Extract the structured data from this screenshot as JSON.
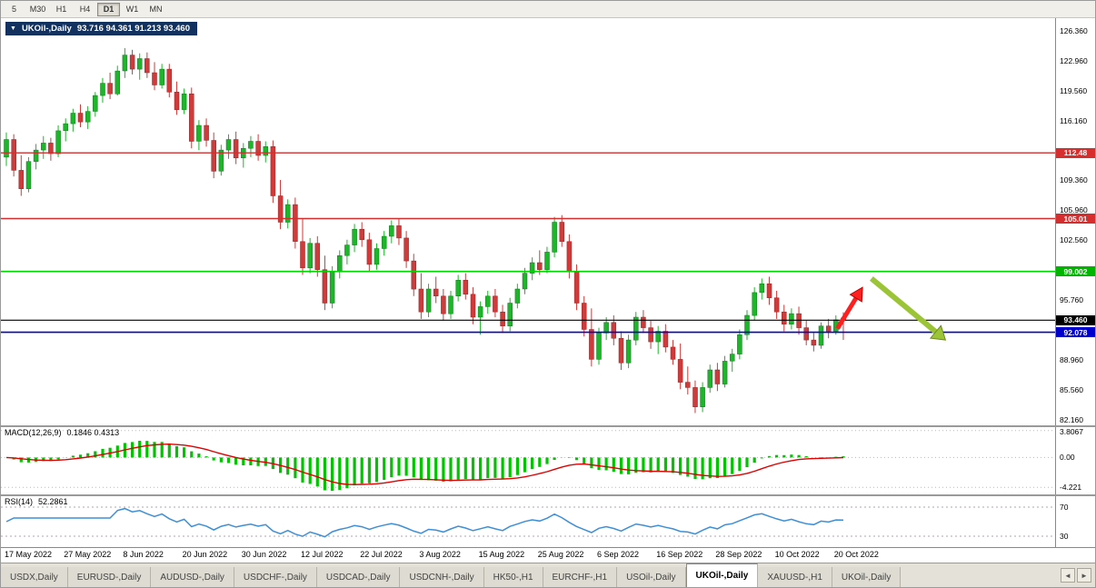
{
  "toolbar": {
    "periods": [
      {
        "label": "5",
        "active": false
      },
      {
        "label": "M30",
        "active": false
      },
      {
        "label": "H1",
        "active": false
      },
      {
        "label": "H4",
        "active": false
      },
      {
        "label": "D1",
        "active": true
      },
      {
        "label": "W1",
        "active": false
      },
      {
        "label": "MN",
        "active": false
      }
    ]
  },
  "chart": {
    "dropdown_icon": "▼",
    "symbol_label": "UKOil-,Daily",
    "ohlc_text": "93.716 94.361 91.213 93.460"
  },
  "chart_data": {
    "type": "candlestick",
    "symbol": "UKOil-,Daily",
    "last_ohlc": {
      "open": 93.716,
      "high": 94.361,
      "low": 91.213,
      "close": 93.46
    },
    "price_range": [
      81.5,
      127.8
    ],
    "price_axis_ticks": [
      "126.360",
      "122.960",
      "119.560",
      "116.160",
      "112.760",
      "109.360",
      "105.960",
      "102.560",
      "99.160",
      "95.760",
      "92.360",
      "88.960",
      "85.560",
      "82.160"
    ],
    "x_labels": [
      "17 May 2022",
      "27 May 2022",
      "8 Jun 2022",
      "20 Jun 2022",
      "30 Jun 2022",
      "12 Jul 2022",
      "22 Jul 2022",
      "3 Aug 2022",
      "15 Aug 2022",
      "25 Aug 2022",
      "6 Sep 2022",
      "16 Sep 2022",
      "28 Sep 2022",
      "10 Oct 2022",
      "20 Oct 2022"
    ],
    "x_label_step": 8,
    "hlines": [
      {
        "price": 112.48,
        "color": "#d62e2e",
        "width": 1.4,
        "badge": "112.48",
        "badge_bg": "#d62e2e"
      },
      {
        "price": 105.01,
        "color": "#d62e2e",
        "width": 1.4,
        "badge": "105.01",
        "badge_bg": "#d62e2e"
      },
      {
        "price": 99.002,
        "color": "#00d300",
        "width": 1.6,
        "badge": "99.002",
        "badge_bg": "#00b400"
      },
      {
        "price": 93.46,
        "color": "#000000",
        "width": 1.2,
        "badge": "93.460",
        "badge_bg": "#000000"
      },
      {
        "price": 92.078,
        "color": "#0000dd",
        "width": 1.6,
        "badge": "92.078",
        "badge_bg": "#0000cc"
      }
    ],
    "candles": [
      [
        112.0,
        114.8,
        111.0,
        114.0
      ],
      [
        114.0,
        114.6,
        109.8,
        110.5
      ],
      [
        110.5,
        112.2,
        107.6,
        108.4
      ],
      [
        108.4,
        112.0,
        108.0,
        111.5
      ],
      [
        111.5,
        113.5,
        110.6,
        112.8
      ],
      [
        112.8,
        114.4,
        111.8,
        113.6
      ],
      [
        113.6,
        114.2,
        111.6,
        112.4
      ],
      [
        112.4,
        115.6,
        112.0,
        115.0
      ],
      [
        115.0,
        116.4,
        113.8,
        115.8
      ],
      [
        115.8,
        117.5,
        114.9,
        117.0
      ],
      [
        117.0,
        118.0,
        115.4,
        116.0
      ],
      [
        116.0,
        117.8,
        115.2,
        117.2
      ],
      [
        117.2,
        119.4,
        116.6,
        119.0
      ],
      [
        119.0,
        121.0,
        118.2,
        120.4
      ],
      [
        120.4,
        121.6,
        118.6,
        119.2
      ],
      [
        119.2,
        122.4,
        119.0,
        121.8
      ],
      [
        121.8,
        124.4,
        121.0,
        123.6
      ],
      [
        123.6,
        124.2,
        121.4,
        122.0
      ],
      [
        122.0,
        123.8,
        120.8,
        123.2
      ],
      [
        123.2,
        123.9,
        121.0,
        121.6
      ],
      [
        121.6,
        122.8,
        119.6,
        120.2
      ],
      [
        120.2,
        122.6,
        119.8,
        122.0
      ],
      [
        122.0,
        122.6,
        118.8,
        119.4
      ],
      [
        119.4,
        120.6,
        116.8,
        117.4
      ],
      [
        117.4,
        119.8,
        116.9,
        119.2
      ],
      [
        119.2,
        119.9,
        113.0,
        113.8
      ],
      [
        113.8,
        116.2,
        112.8,
        115.6
      ],
      [
        115.6,
        116.4,
        113.2,
        113.9
      ],
      [
        113.9,
        114.8,
        109.6,
        110.4
      ],
      [
        110.4,
        113.4,
        109.9,
        112.8
      ],
      [
        112.8,
        114.6,
        111.8,
        114.0
      ],
      [
        114.0,
        114.9,
        111.2,
        111.9
      ],
      [
        111.9,
        113.6,
        110.8,
        113.0
      ],
      [
        113.0,
        114.4,
        112.0,
        113.8
      ],
      [
        113.8,
        114.6,
        111.6,
        112.2
      ],
      [
        112.2,
        113.8,
        111.4,
        113.2
      ],
      [
        113.2,
        113.9,
        106.8,
        107.6
      ],
      [
        107.6,
        109.4,
        103.8,
        104.6
      ],
      [
        104.6,
        107.2,
        103.9,
        106.6
      ],
      [
        106.6,
        107.4,
        101.6,
        102.4
      ],
      [
        102.4,
        105.0,
        98.6,
        99.4
      ],
      [
        99.4,
        102.8,
        98.8,
        102.2
      ],
      [
        102.2,
        103.0,
        98.4,
        99.2
      ],
      [
        99.2,
        100.8,
        94.6,
        95.4
      ],
      [
        95.4,
        99.6,
        94.8,
        99.0
      ],
      [
        99.0,
        101.4,
        98.2,
        100.8
      ],
      [
        100.8,
        102.6,
        99.8,
        102.0
      ],
      [
        102.0,
        104.4,
        101.2,
        103.8
      ],
      [
        103.8,
        104.6,
        101.8,
        102.6
      ],
      [
        102.6,
        103.4,
        99.0,
        99.8
      ],
      [
        99.8,
        102.2,
        99.2,
        101.6
      ],
      [
        101.6,
        103.6,
        100.8,
        103.0
      ],
      [
        103.0,
        104.8,
        102.2,
        104.2
      ],
      [
        104.2,
        105.0,
        102.0,
        102.8
      ],
      [
        102.8,
        103.6,
        99.4,
        100.2
      ],
      [
        100.2,
        101.0,
        96.2,
        97.0
      ],
      [
        97.0,
        98.8,
        93.6,
        94.4
      ],
      [
        94.4,
        97.6,
        93.8,
        97.0
      ],
      [
        97.0,
        98.4,
        95.4,
        96.2
      ],
      [
        96.2,
        97.0,
        93.4,
        94.2
      ],
      [
        94.2,
        96.8,
        93.6,
        96.2
      ],
      [
        96.2,
        98.6,
        95.6,
        98.0
      ],
      [
        98.0,
        98.8,
        95.8,
        96.4
      ],
      [
        96.4,
        97.2,
        93.0,
        93.8
      ],
      [
        93.8,
        95.6,
        91.8,
        95.0
      ],
      [
        95.0,
        96.8,
        94.2,
        96.2
      ],
      [
        96.2,
        97.0,
        93.8,
        94.4
      ],
      [
        94.4,
        95.2,
        92.0,
        92.8
      ],
      [
        92.8,
        96.0,
        92.2,
        95.4
      ],
      [
        95.4,
        97.6,
        94.8,
        97.0
      ],
      [
        97.0,
        99.4,
        96.4,
        98.8
      ],
      [
        98.8,
        100.6,
        98.0,
        100.0
      ],
      [
        100.0,
        101.4,
        98.6,
        99.2
      ],
      [
        99.2,
        101.8,
        98.8,
        101.2
      ],
      [
        101.2,
        105.2,
        100.6,
        104.6
      ],
      [
        104.6,
        105.4,
        101.8,
        102.4
      ],
      [
        102.4,
        103.2,
        98.2,
        99.0
      ],
      [
        99.0,
        99.8,
        94.6,
        95.4
      ],
      [
        95.4,
        96.2,
        91.6,
        92.4
      ],
      [
        92.4,
        94.8,
        88.2,
        89.0
      ],
      [
        89.0,
        92.6,
        88.4,
        92.0
      ],
      [
        92.0,
        93.8,
        91.2,
        93.2
      ],
      [
        93.2,
        94.0,
        90.6,
        91.4
      ],
      [
        91.4,
        92.2,
        87.8,
        88.6
      ],
      [
        88.6,
        91.8,
        88.0,
        91.2
      ],
      [
        91.2,
        94.4,
        90.6,
        93.8
      ],
      [
        93.8,
        94.6,
        92.0,
        92.6
      ],
      [
        92.6,
        93.4,
        90.2,
        91.0
      ],
      [
        91.0,
        92.8,
        89.6,
        92.2
      ],
      [
        92.2,
        93.0,
        89.8,
        90.4
      ],
      [
        90.4,
        91.2,
        88.4,
        89.0
      ],
      [
        89.0,
        90.8,
        85.6,
        86.4
      ],
      [
        86.4,
        88.2,
        85.0,
        85.8
      ],
      [
        85.8,
        86.6,
        82.9,
        83.6
      ],
      [
        83.6,
        86.4,
        83.0,
        85.8
      ],
      [
        85.8,
        88.4,
        85.2,
        87.8
      ],
      [
        87.8,
        88.6,
        85.4,
        86.2
      ],
      [
        86.2,
        89.4,
        85.8,
        88.8
      ],
      [
        88.8,
        90.2,
        87.6,
        89.6
      ],
      [
        89.6,
        92.4,
        89.0,
        91.8
      ],
      [
        91.8,
        94.6,
        91.2,
        94.0
      ],
      [
        94.0,
        97.2,
        93.4,
        96.6
      ],
      [
        96.6,
        98.2,
        95.8,
        97.6
      ],
      [
        97.6,
        98.4,
        95.2,
        96.0
      ],
      [
        96.0,
        96.8,
        93.6,
        94.4
      ],
      [
        94.4,
        95.2,
        92.2,
        93.0
      ],
      [
        93.0,
        94.8,
        92.4,
        94.2
      ],
      [
        94.2,
        95.0,
        91.8,
        92.6
      ],
      [
        92.6,
        93.4,
        90.6,
        91.2
      ],
      [
        91.2,
        92.0,
        89.9,
        90.6
      ],
      [
        90.6,
        93.2,
        90.2,
        92.8
      ],
      [
        92.8,
        93.6,
        91.4,
        92.2
      ],
      [
        92.2,
        94.0,
        91.8,
        93.5
      ],
      [
        93.716,
        94.361,
        91.213,
        93.46
      ]
    ],
    "up_color": "#1db52a",
    "down_color": "#cf3a3a",
    "macd": {
      "title": "MACD(12,26,9)",
      "values_text": "0.1846 0.4313",
      "fast": 12,
      "slow": 26,
      "signal": 9,
      "histogram_color": "#00c400",
      "signal_color": "#e00000",
      "scale_labels": [
        "3.8067",
        "0.00",
        "-4.221"
      ],
      "scale_values": [
        3.8067,
        0,
        -4.221
      ]
    },
    "rsi": {
      "title": "RSI(14)",
      "value_text": "52.2861",
      "period": 14,
      "line_color": "#3e8fd6",
      "levels": [
        70,
        30
      ]
    },
    "arrows": [
      {
        "name": "red-up-arrow",
        "color": "#ff1f1f",
        "outline": "#c00000",
        "width": 5,
        "from_bar": 112.2,
        "from_price": 92.5,
        "to_bar": 115.6,
        "to_price": 97.2
      },
      {
        "name": "green-down-arrow",
        "color": "#9cc437",
        "outline": "#6e8b1f",
        "width": 6,
        "from_bar": 116.8,
        "from_price": 98.2,
        "to_bar": 126.8,
        "to_price": 91.2
      }
    ]
  },
  "window_tabs": {
    "tabs": [
      {
        "label": "USDX,Daily",
        "active": false
      },
      {
        "label": "EURUSD-,Daily",
        "active": false
      },
      {
        "label": "AUDUSD-,Daily",
        "active": false
      },
      {
        "label": "USDCHF-,Daily",
        "active": false
      },
      {
        "label": "USDCAD-,Daily",
        "active": false
      },
      {
        "label": "USDCNH-,Daily",
        "active": false
      },
      {
        "label": "HK50-,H1",
        "active": false
      },
      {
        "label": "EURCHF-,H1",
        "active": false
      },
      {
        "label": "USOil-,Daily",
        "active": false
      },
      {
        "label": "UKOil-,Daily",
        "active": true
      },
      {
        "label": "XAUUSD-,H1",
        "active": false
      },
      {
        "label": "UKOil-,Daily",
        "active": false
      }
    ],
    "nav_left_icon": "◄",
    "nav_right_icon": "►"
  }
}
